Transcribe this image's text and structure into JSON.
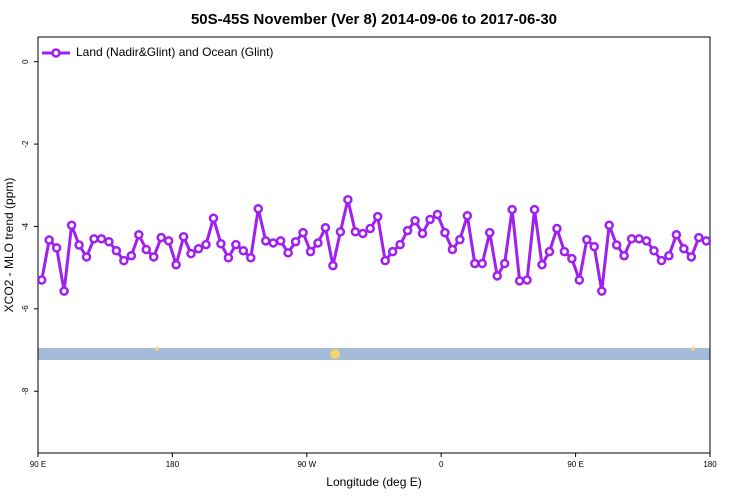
{
  "chart_data": {
    "type": "line",
    "title": "50S-45S November (Ver 8)   2014-09-06 to 2017-06-30",
    "xlabel": "Longitude (deg E)",
    "ylabel": "XCO2 - MLO trend (ppm)",
    "x": [
      92.5,
      97.5,
      102.5,
      107.5,
      112.5,
      117.5,
      122.5,
      127.5,
      132.5,
      137.5,
      142.5,
      147.5,
      152.5,
      157.5,
      162.5,
      167.5,
      172.5,
      177.5,
      182.5,
      187.5,
      192.5,
      197.5,
      202.5,
      207.5,
      212.5,
      217.5,
      222.5,
      227.5,
      232.5,
      237.5,
      242.5,
      247.5,
      252.5,
      257.5,
      262.5,
      267.5,
      272.5,
      277.5,
      282.5,
      287.5,
      292.5,
      297.5,
      302.5,
      307.5,
      312.5,
      317.5,
      322.5,
      327.5,
      332.5,
      337.5,
      342.5,
      347.5,
      352.5,
      357.5,
      362.5,
      367.5,
      372.5,
      377.5,
      382.5,
      387.5,
      392.5,
      397.5,
      402.5,
      407.5,
      412.5,
      417.5,
      422.5,
      427.5,
      432.5,
      437.5,
      442.5,
      447.5,
      452.5,
      457.5,
      462.5,
      467.5,
      472.5,
      477.5,
      482.5,
      487.5,
      492.5,
      497.5,
      502.5,
      507.5,
      512.5,
      517.5,
      522.5,
      527.5,
      532.5,
      537.5
    ],
    "series": [
      {
        "name": "Land (Nadir&Glint) and Ocean (Glint)",
        "color": "#a020f0",
        "values": [
          -5.3,
          -4.33,
          -4.52,
          -5.57,
          -3.97,
          -4.45,
          -4.74,
          -4.3,
          -4.3,
          -4.37,
          -4.59,
          -4.83,
          -4.71,
          -4.2,
          -4.56,
          -4.74,
          -4.27,
          -4.35,
          -4.93,
          -4.25,
          -4.66,
          -4.54,
          -4.44,
          -3.8,
          -4.42,
          -4.76,
          -4.44,
          -4.59,
          -4.76,
          -3.57,
          -4.35,
          -4.4,
          -4.35,
          -4.64,
          -4.37,
          -4.15,
          -4.61,
          -4.4,
          -4.03,
          -4.95,
          -4.13,
          -3.35,
          -4.13,
          -4.17,
          -4.05,
          -3.76,
          -4.83,
          -4.61,
          -4.44,
          -4.1,
          -3.86,
          -4.17,
          -3.83,
          -3.71,
          -4.15,
          -4.56,
          -4.32,
          -3.74,
          -4.9,
          -4.9,
          -4.15,
          -5.2,
          -4.9,
          -3.59,
          -5.32,
          -5.3,
          -3.59,
          -4.93,
          -4.61,
          -4.05,
          -4.61,
          -4.78,
          -5.3,
          -4.32,
          -4.49,
          -5.57,
          -3.97,
          -4.45,
          -4.71,
          -4.3,
          -4.3,
          -4.35,
          -4.59,
          -4.83,
          -4.71,
          -4.2,
          -4.54,
          -4.74,
          -4.27,
          -4.35
        ]
      }
    ],
    "xlim": [
      90,
      540
    ],
    "xticks": [
      {
        "value": 90,
        "label": "90 E"
      },
      180,
      {
        "value": 270,
        "label": "90 W"
      },
      {
        "value": 360,
        "label": "0"
      },
      {
        "value": 450,
        "label": "90 E"
      },
      {
        "value": 540,
        "label": "180"
      }
    ],
    "ylim": [
      0.6,
      -9.5
    ],
    "yticks": [
      0,
      -2,
      -4,
      -6,
      -8
    ],
    "legend": "top-left"
  }
}
